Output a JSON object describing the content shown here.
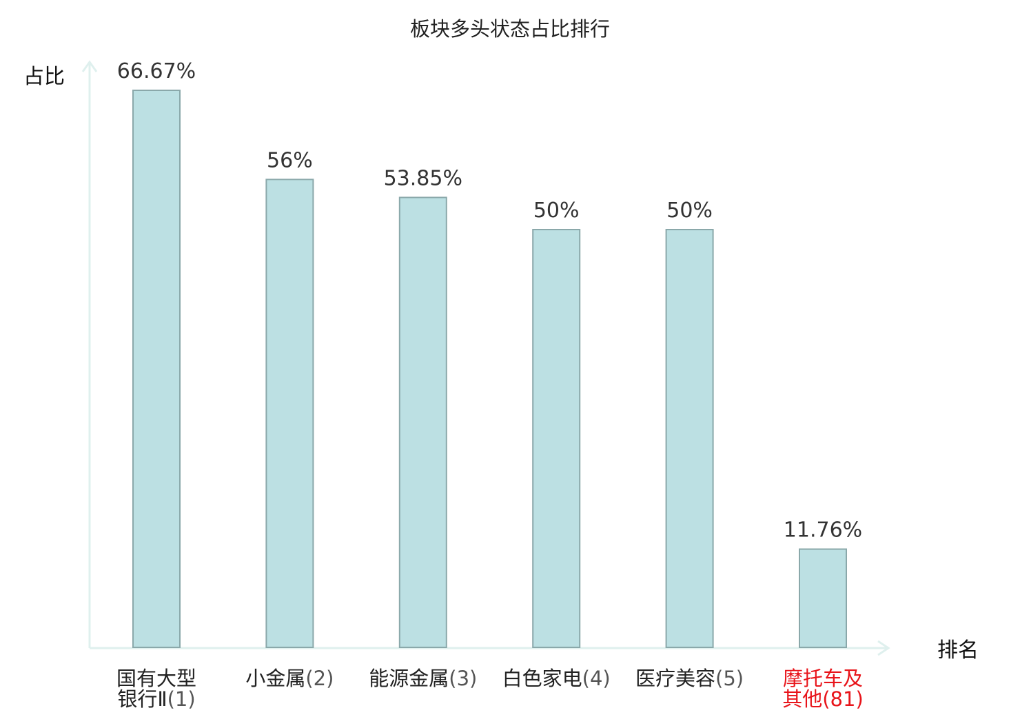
{
  "chart_data": {
    "type": "bar",
    "title": "板块多头状态占比排行",
    "ylabel": "占比",
    "xlabel": "排名",
    "ylim": [
      0,
      70
    ],
    "categories": [
      {
        "lines": [
          "国有大型",
          "银行Ⅱ"
        ],
        "rank": "(1)",
        "highlight": false
      },
      {
        "lines": [
          "小金属"
        ],
        "rank": "(2)",
        "highlight": false
      },
      {
        "lines": [
          "能源金属"
        ],
        "rank": "(3)",
        "highlight": false
      },
      {
        "lines": [
          "白色家电"
        ],
        "rank": "(4)",
        "highlight": false
      },
      {
        "lines": [
          "医疗美容"
        ],
        "rank": "(5)",
        "highlight": false
      },
      {
        "lines": [
          "摩托车及",
          "其他"
        ],
        "rank": "(81)",
        "highlight": true
      }
    ],
    "values": [
      66.67,
      56,
      53.85,
      50,
      50,
      11.76
    ],
    "value_labels": [
      "66.67%",
      "56%",
      "53.85%",
      "50%",
      "50%",
      "11.76%"
    ],
    "grid": false,
    "legend": "none"
  },
  "colors": {
    "bar_fill": "#bce0e3",
    "bar_stroke": "#8aa8aa",
    "axis": "#dff0ee",
    "highlight": "#e8141a"
  }
}
